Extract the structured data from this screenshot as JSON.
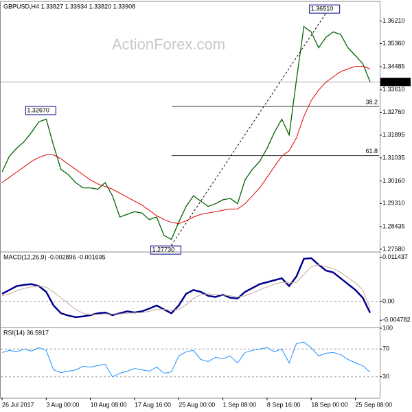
{
  "chart_data": [
    {
      "type": "line",
      "title": "GBPUSD,H4 1.33827 1.33934 1.33820 1.33908",
      "watermark": "ActionForex.com",
      "categories": [
        "26 Jul 2017",
        null,
        null,
        null,
        null,
        null,
        "3 Aug 00:00",
        null,
        null,
        null,
        null,
        null,
        "10 Aug 08:00",
        null,
        null,
        null,
        null,
        null,
        "17 Aug 16:00",
        null,
        null,
        null,
        null,
        null,
        "25 Aug 00:00",
        null,
        null,
        null,
        null,
        null,
        "1 Sep 08:00",
        null,
        null,
        null,
        null,
        null,
        "8 Sep 16:00",
        null,
        null,
        null,
        null,
        null,
        "18 Sep 00:00",
        null,
        null,
        null,
        null,
        null,
        "25 Sep 08:00",
        null,
        null
      ],
      "series": [
        {
          "name": "Close",
          "color": "#006400",
          "values": [
            1.305,
            1.311,
            1.314,
            1.3165,
            1.32,
            1.324,
            1.325,
            1.315,
            1.306,
            1.304,
            1.301,
            1.299,
            1.299,
            1.2985,
            1.301,
            1.296,
            1.288,
            1.289,
            1.29,
            1.2895,
            1.287,
            1.288,
            1.281,
            1.2795,
            1.286,
            1.292,
            1.296,
            1.294,
            1.292,
            1.293,
            1.2945,
            1.295,
            1.293,
            1.302,
            1.306,
            1.309,
            1.314,
            1.32,
            1.325,
            1.319,
            1.34,
            1.36,
            1.358,
            1.352,
            1.356,
            1.358,
            1.357,
            1.352,
            1.349,
            1.346,
            1.3391
          ]
        },
        {
          "name": "MA",
          "color": "#e00000",
          "values": [
            1.301,
            1.303,
            1.305,
            1.307,
            1.309,
            1.3105,
            1.3115,
            1.3115,
            1.31,
            1.308,
            1.306,
            1.304,
            1.302,
            1.3005,
            1.2995,
            1.2985,
            1.297,
            1.2955,
            1.294,
            1.2925,
            1.2905,
            1.2885,
            1.287,
            1.286,
            1.2855,
            1.2865,
            1.288,
            1.289,
            1.2895,
            1.29,
            1.2905,
            1.291,
            1.291,
            1.293,
            1.296,
            1.299,
            1.303,
            1.307,
            1.311,
            1.313,
            1.318,
            1.326,
            1.332,
            1.336,
            1.339,
            1.341,
            1.343,
            1.344,
            1.345,
            1.345,
            1.344
          ]
        }
      ],
      "ylim": [
        1.275,
        1.3693
      ],
      "yticks": [
        {
          "value": 1.3621,
          "label": "1.36210"
        },
        {
          "value": 1.3536,
          "label": "1.35360"
        },
        1.34485,
        {
          "value": 1.3361,
          "label": "1.33610"
        },
        {
          "value": 1.3276,
          "label": "1.32760"
        },
        1.31895,
        1.31035,
        {
          "value": 1.3016,
          "label": "1.30160"
        },
        {
          "value": 1.2931,
          "label": "1.29310"
        },
        1.28435,
        {
          "value": 1.2758,
          "label": "1.27580"
        }
      ],
      "current_price": {
        "value": 1.33908,
        "label": "1.33908"
      },
      "fib_levels": [
        {
          "label": "38.2",
          "value": 1.3298
        },
        {
          "label": "61.8",
          "value": 1.3112
        }
      ],
      "annotations": [
        {
          "label": "1.32670",
          "value": 1.3267,
          "index": 6
        },
        {
          "label": "1.27730",
          "value": 1.2773,
          "index": 23
        },
        {
          "label": "1.36510",
          "value": 1.3651,
          "index": 44
        }
      ]
    },
    {
      "type": "line",
      "title": "MACD(12,26,9) -0.002896 -0.001695",
      "series": [
        {
          "name": "MACD",
          "color": "#00008b",
          "values": [
            0.002,
            0.003,
            0.004,
            0.0043,
            0.0045,
            0.004,
            0.0025,
            -0.001,
            -0.003,
            -0.0036,
            -0.004,
            -0.0038,
            -0.0035,
            -0.003,
            -0.0028,
            -0.0035,
            -0.003,
            -0.0025,
            -0.0028,
            -0.0025,
            -0.0018,
            -0.001,
            -0.002,
            -0.003,
            -0.001,
            0.002,
            0.003,
            0.0025,
            0.0015,
            0.0012,
            0.0018,
            0.001,
            0.0008,
            0.0025,
            0.0035,
            0.0045,
            0.005,
            0.0055,
            0.006,
            0.004,
            0.0065,
            0.011,
            0.0112,
            0.0095,
            0.008,
            0.0075,
            0.006,
            0.0045,
            0.003,
            0.001,
            -0.002896
          ]
        },
        {
          "name": "Signal",
          "color": "#c8a898",
          "values": [
            0.0015,
            0.002,
            0.0028,
            0.0034,
            0.0038,
            0.004,
            0.0037,
            0.0025,
            0.001,
            -0.0005,
            -0.002,
            -0.003,
            -0.0034,
            -0.0033,
            -0.0032,
            -0.0032,
            -0.0032,
            -0.003,
            -0.0029,
            -0.0028,
            -0.0025,
            -0.002,
            -0.002,
            -0.0022,
            -0.002,
            -0.0008,
            0.0008,
            0.0018,
            0.002,
            0.0018,
            0.0017,
            0.0015,
            0.0012,
            0.0015,
            0.0022,
            0.003,
            0.0038,
            0.0045,
            0.005,
            0.0048,
            0.005,
            0.007,
            0.009,
            0.0095,
            0.009,
            0.0085,
            0.0075,
            0.0062,
            0.0048,
            0.003,
            -0.001695
          ]
        }
      ],
      "ylim": [
        -0.0065,
        0.0126
      ],
      "yticks": [
        0.011437,
        {
          "value": 0,
          "label": "0.00"
        },
        -0.004782
      ],
      "reference_lines": [
        0
      ]
    },
    {
      "type": "line",
      "title": "RSI(14) 36.5917",
      "series": [
        {
          "name": "RSI",
          "color": "#1e90ff",
          "values": [
            65,
            68,
            66,
            70,
            67,
            72,
            68,
            40,
            36,
            38,
            40,
            45,
            44,
            46,
            48,
            30,
            35,
            38,
            42,
            40,
            38,
            44,
            35,
            37,
            60,
            66,
            68,
            55,
            52,
            58,
            56,
            60,
            50,
            65,
            68,
            70,
            72,
            66,
            70,
            50,
            78,
            80,
            72,
            60,
            64,
            65,
            62,
            55,
            50,
            46,
            36.5917
          ]
        }
      ],
      "ylim": [
        0,
        100
      ],
      "yticks": [
        100,
        70,
        30
      ],
      "reference_lines": [
        70,
        30
      ]
    }
  ]
}
